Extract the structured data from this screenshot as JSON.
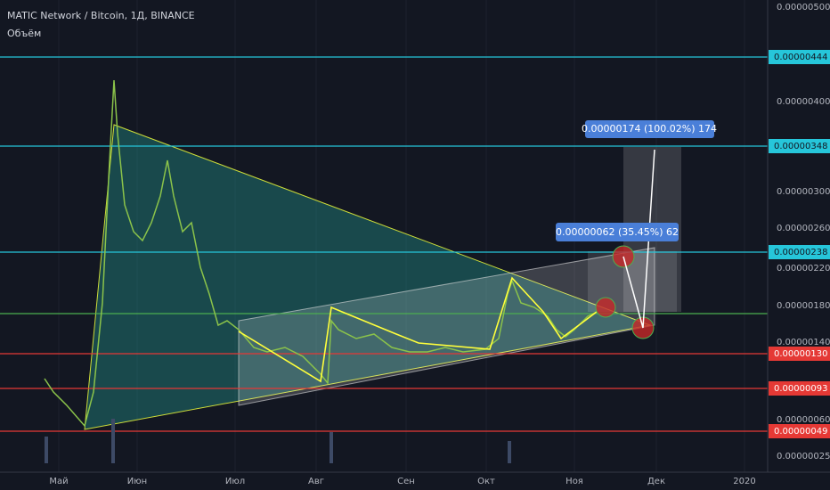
{
  "header": {
    "title": "MATIC Network / Bitcoin, 1Д, BINANCE",
    "indicator": "Объём"
  },
  "price_axis": {
    "labels": [
      "0.00000500",
      "0.00000400",
      "0.00000300",
      "0.00000260",
      "0.00000220",
      "0.00000180",
      "0.00000140",
      "0.00000060",
      "0.00000025"
    ],
    "levels": [
      {
        "label": "0.00000444",
        "color": "#26c6da"
      },
      {
        "label": "0.00000348",
        "color": "#26c6da"
      },
      {
        "label": "0.00000238",
        "color": "#26c6da"
      },
      {
        "label": "0.00000130",
        "color": "#e53935"
      },
      {
        "label": "0.00000093",
        "color": "#e53935"
      },
      {
        "label": "0.00000049",
        "color": "#e53935"
      }
    ]
  },
  "time_axis": {
    "labels": [
      "Май",
      "Июн",
      "Июл",
      "Авг",
      "Сен",
      "Окт",
      "Ноя",
      "Дек",
      "2020"
    ]
  },
  "annotations": [
    "0.00000174 (100.02%) 174",
    "0.00000062 (35.45%) 62"
  ]
}
